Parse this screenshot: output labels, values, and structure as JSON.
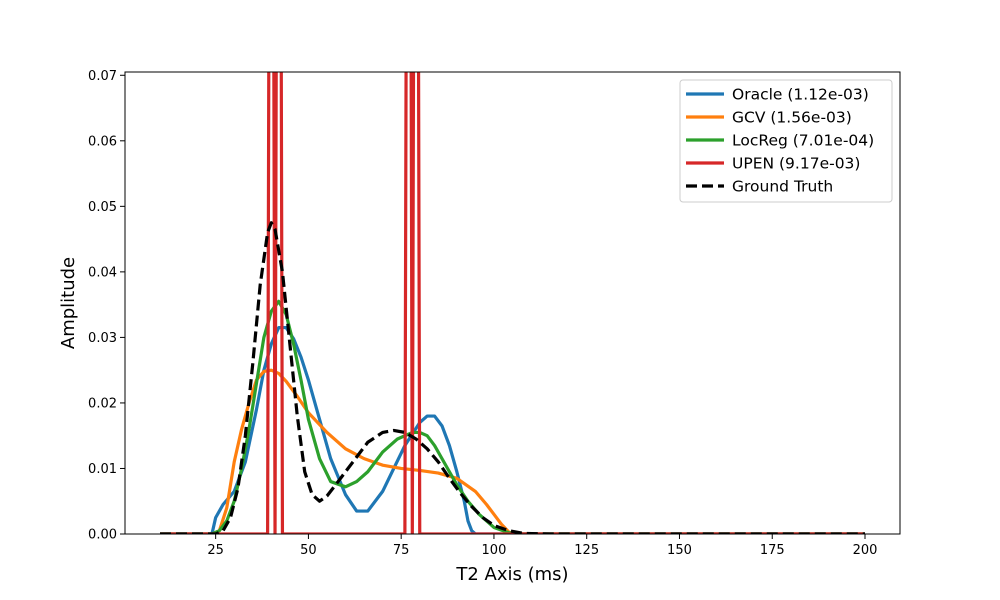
{
  "chart_data": {
    "type": "line",
    "xlabel": "T2 Axis (ms)",
    "ylabel": "Amplitude",
    "xlim": [
      0,
      210
    ],
    "ylim": [
      0,
      0.0705
    ],
    "xticks": [
      25,
      50,
      75,
      100,
      125,
      150,
      175,
      200
    ],
    "yticks": [
      0.0,
      0.01,
      0.02,
      0.03,
      0.04,
      0.05,
      0.06,
      0.07
    ],
    "ytick_labels": [
      "0.00",
      "0.01",
      "0.02",
      "0.03",
      "0.04",
      "0.05",
      "0.06",
      "0.07"
    ],
    "legend_position": "top-right",
    "grid": false,
    "series": [
      {
        "name": "Oracle (1.12e-03)",
        "color": "#1f77b4",
        "dash": "solid",
        "x": [
          10,
          24,
          25,
          27,
          30,
          33,
          36,
          38,
          40,
          42,
          44,
          46,
          48,
          50,
          53,
          56,
          60,
          63,
          66,
          70,
          73,
          76,
          80,
          82,
          84,
          86,
          88,
          90,
          92,
          93,
          94,
          95,
          100,
          120,
          150,
          200
        ],
        "y": [
          0.0,
          0.0,
          0.0025,
          0.0045,
          0.0065,
          0.011,
          0.019,
          0.025,
          0.029,
          0.0315,
          0.0315,
          0.0298,
          0.027,
          0.0235,
          0.0175,
          0.0115,
          0.006,
          0.0035,
          0.0035,
          0.0065,
          0.01,
          0.0135,
          0.017,
          0.018,
          0.018,
          0.0165,
          0.0135,
          0.0095,
          0.005,
          0.002,
          0.0005,
          0.0,
          0.0,
          0.0,
          0.0,
          0.0
        ]
      },
      {
        "name": "GCV (1.56e-03)",
        "color": "#ff7f0e",
        "dash": "solid",
        "x": [
          10,
          24,
          26,
          28,
          30,
          32,
          34,
          36,
          38,
          40,
          42,
          44,
          47,
          50,
          55,
          60,
          65,
          70,
          75,
          80,
          85,
          90,
          95,
          98,
          100,
          102,
          104,
          106,
          110,
          150,
          200
        ],
        "y": [
          0.0,
          0.0,
          0.0005,
          0.004,
          0.011,
          0.016,
          0.02,
          0.0235,
          0.0248,
          0.025,
          0.0245,
          0.0233,
          0.021,
          0.0185,
          0.0155,
          0.013,
          0.0115,
          0.0105,
          0.01,
          0.0097,
          0.0093,
          0.0085,
          0.0065,
          0.0045,
          0.003,
          0.0015,
          0.0003,
          0.0,
          0.0,
          0.0,
          0.0
        ]
      },
      {
        "name": "LocReg (7.01e-04)",
        "color": "#2ca02c",
        "dash": "solid",
        "x": [
          10,
          24,
          26,
          28,
          30,
          32,
          34,
          36,
          38,
          40,
          42,
          44,
          46,
          48,
          50,
          53,
          56,
          60,
          63,
          66,
          70,
          74,
          78,
          80,
          82,
          84,
          86,
          88,
          90,
          93,
          96,
          100,
          104,
          108,
          115,
          150,
          200
        ],
        "y": [
          0.0,
          0.0,
          0.0005,
          0.002,
          0.005,
          0.01,
          0.016,
          0.023,
          0.03,
          0.034,
          0.0355,
          0.0335,
          0.029,
          0.0235,
          0.0175,
          0.0115,
          0.008,
          0.0072,
          0.008,
          0.0095,
          0.0125,
          0.0145,
          0.0155,
          0.0155,
          0.015,
          0.0135,
          0.0115,
          0.0095,
          0.0075,
          0.005,
          0.003,
          0.001,
          0.0002,
          0.0,
          0.0,
          0.0,
          0.0
        ]
      },
      {
        "name": "UPEN (9.17e-03)",
        "color": "#d62728",
        "dash": "solid",
        "x": [
          10,
          39,
          39.4,
          40.6,
          41,
          41.4,
          42.6,
          43,
          76,
          76.4,
          77.6,
          78,
          78.4,
          79.6,
          80,
          200
        ],
        "y": [
          0.0,
          0.0,
          0.09,
          0.09,
          0.0,
          0.09,
          0.09,
          0.0,
          0.0,
          0.09,
          0.09,
          0.0,
          0.09,
          0.09,
          0.0,
          0.0
        ]
      },
      {
        "name": "Ground Truth",
        "color": "#000000",
        "dash": "dashed",
        "x": [
          10,
          25,
          27,
          29,
          31,
          33,
          35,
          37,
          39,
          40,
          41,
          43,
          45,
          47,
          49,
          51,
          53,
          55,
          58,
          62,
          66,
          70,
          73,
          76,
          79,
          82,
          85,
          88,
          91,
          94,
          97,
          100,
          104,
          108,
          115,
          150,
          200
        ],
        "y": [
          0.0,
          0.0,
          0.0005,
          0.0025,
          0.007,
          0.015,
          0.026,
          0.038,
          0.046,
          0.0475,
          0.0465,
          0.04,
          0.029,
          0.018,
          0.0095,
          0.006,
          0.005,
          0.0058,
          0.008,
          0.011,
          0.014,
          0.0155,
          0.0158,
          0.0155,
          0.0145,
          0.013,
          0.011,
          0.0085,
          0.0062,
          0.0042,
          0.0025,
          0.0013,
          0.0005,
          0.0001,
          0.0,
          0.0,
          0.0
        ]
      }
    ]
  }
}
